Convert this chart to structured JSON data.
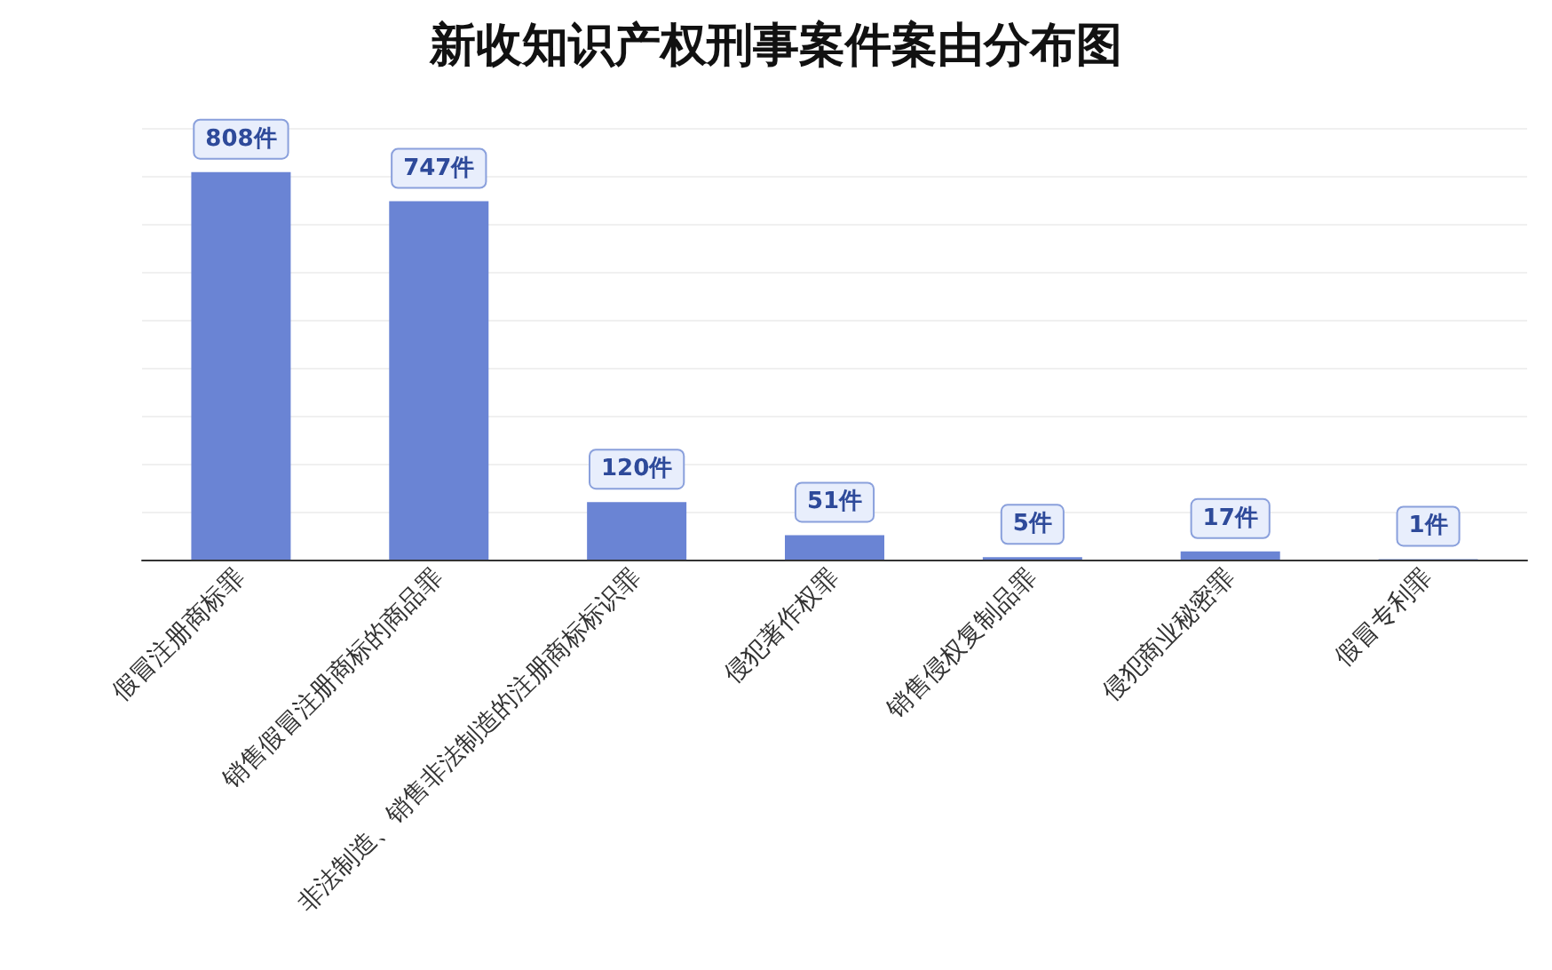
{
  "chart_data": {
    "type": "bar",
    "title": "新收知识产权刑事案件案由分布图",
    "categories": [
      "假冒注册商标罪",
      "销售假冒注册商标的商品罪",
      "非法制造、销售非法制造的注册商标标识罪",
      "侵犯著作权罪",
      "销售侵权复制品罪",
      "侵犯商业秘密罪",
      "假冒专利罪"
    ],
    "values": [
      808,
      747,
      120,
      51,
      5,
      17,
      1
    ],
    "value_labels": [
      "808件",
      "747件",
      "120件",
      "51件",
      "5件",
      "17件",
      "1件"
    ],
    "color": "#6a84d4",
    "ylim": [
      0,
      900
    ],
    "yticks": [
      {
        "value": 0,
        "label": null
      },
      {
        "value": 100,
        "label": null
      },
      {
        "value": 200,
        "label": null
      },
      {
        "value": 300,
        "label": null
      },
      {
        "value": 400,
        "label": null
      },
      {
        "value": 500,
        "label": null
      },
      {
        "value": 600,
        "label": null
      },
      {
        "value": 700,
        "label": null
      },
      {
        "value": 800,
        "label": null
      },
      {
        "value": 900,
        "label": null
      }
    ],
    "grid": "y",
    "tick_labels": "x"
  }
}
